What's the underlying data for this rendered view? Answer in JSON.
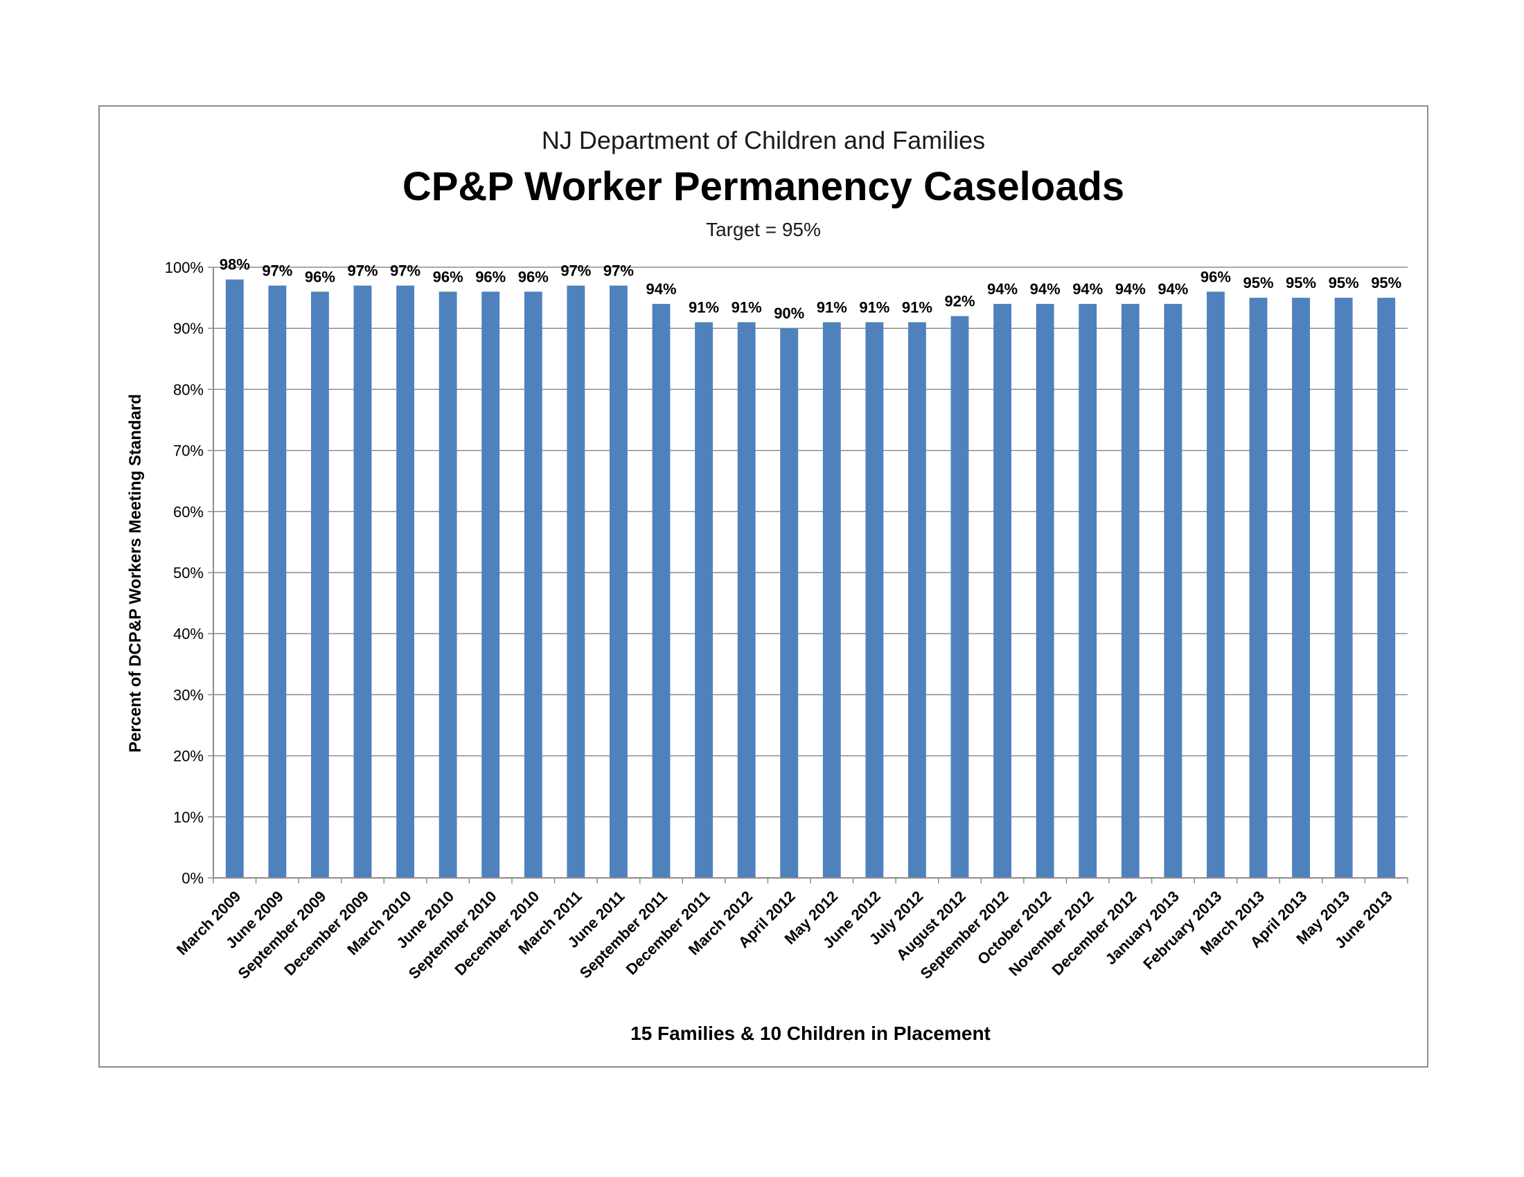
{
  "chart_data": {
    "type": "bar",
    "title_line1": "NJ Department of Children and Families",
    "title": "CP&P Worker Permanency Caseloads",
    "subtitle": "Target = 95%",
    "xlabel": "15 Families & 10 Children in Placement",
    "ylabel": "Percent of DCP&P Workers Meeting Standard",
    "ylim": [
      0,
      100
    ],
    "yticks": [
      "0%",
      "10%",
      "20%",
      "30%",
      "40%",
      "50%",
      "60%",
      "70%",
      "80%",
      "90%",
      "100%"
    ],
    "grid": true,
    "bar_color": "#4f81bd",
    "categories": [
      "March 2009",
      "June 2009",
      "September 2009",
      "December 2009",
      "March 2010",
      "June 2010",
      "September 2010",
      "December 2010",
      "March 2011",
      "June 2011",
      "September 2011",
      "December 2011",
      "March 2012",
      "April 2012",
      "May 2012",
      "June 2012",
      "July 2012",
      "August 2012",
      "September 2012",
      "October 2012",
      "November 2012",
      "December 2012",
      "January 2013",
      "February 2013",
      "March 2013",
      "April 2013",
      "May 2013",
      "June 2013"
    ],
    "values": [
      98,
      97,
      96,
      97,
      97,
      96,
      96,
      96,
      97,
      97,
      94,
      91,
      91,
      90,
      91,
      91,
      91,
      92,
      94,
      94,
      94,
      94,
      94,
      96,
      95,
      95,
      95,
      95
    ],
    "data_labels": [
      "98%",
      "97%",
      "96%",
      "97%",
      "97%",
      "96%",
      "96%",
      "96%",
      "97%",
      "97%",
      "94%",
      "91%",
      "91%",
      "90%",
      "91%",
      "91%",
      "91%",
      "92%",
      "94%",
      "94%",
      "94%",
      "94%",
      "94%",
      "96%",
      "95%",
      "95%",
      "95%",
      "95%"
    ]
  }
}
